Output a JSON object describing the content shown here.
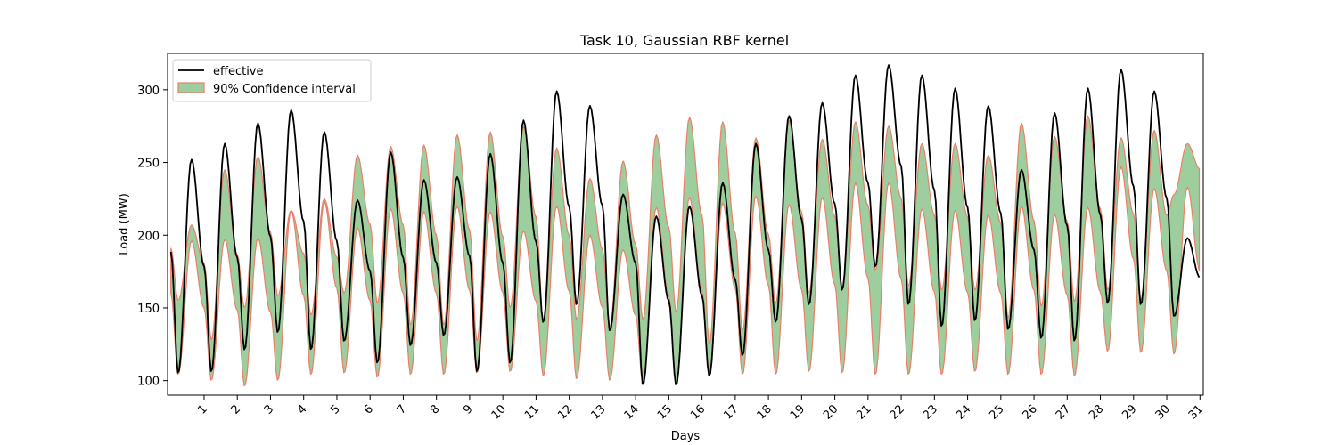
{
  "chart_data": {
    "type": "line",
    "title": "Task 10, Gaussian RBF kernel",
    "xlabel": "Days",
    "ylabel": "Load (MW)",
    "xlim": [
      -0.1,
      31.1
    ],
    "ylim": [
      90,
      325
    ],
    "x_tick_labels": [
      "1",
      "2",
      "3",
      "4",
      "5",
      "6",
      "7",
      "8",
      "9",
      "10",
      "11",
      "12",
      "13",
      "14",
      "15",
      "16",
      "17",
      "18",
      "19",
      "20",
      "21",
      "22",
      "23",
      "24",
      "25",
      "26",
      "27",
      "28",
      "29",
      "30",
      "31"
    ],
    "y_ticks": [
      100,
      150,
      200,
      250,
      300
    ],
    "grid": false,
    "legend_position": "top-left",
    "colors": {
      "effective_line": "#000000",
      "interval_fill": "#3d9e3d",
      "interval_edge": "#e8806a"
    },
    "series": [
      {
        "name": "effective",
        "kind": "line",
        "daily_min": [
          105,
          106,
          121,
          133,
          121,
          127,
          112,
          124,
          131,
          106,
          112,
          140,
          152,
          134,
          97,
          97,
          103,
          117,
          140,
          152,
          162,
          178,
          152,
          137,
          141,
          135,
          129,
          127,
          153,
          152,
          144
        ],
        "daily_max": [
          252,
          263,
          277,
          286,
          271,
          224,
          257,
          238,
          240,
          256,
          279,
          299,
          289,
          228,
          213,
          220,
          236,
          263,
          282,
          291,
          310,
          317,
          310,
          301,
          289,
          245,
          284,
          301,
          314,
          299,
          198
        ]
      },
      {
        "name": "90% Confidence interval",
        "kind": "band",
        "upper_max": [
          207,
          245,
          254,
          217,
          225,
          255,
          261,
          262,
          269,
          271,
          275,
          260,
          239,
          251,
          269,
          281,
          278,
          267,
          279,
          266,
          278,
          275,
          263,
          263,
          255,
          277,
          268,
          282,
          267,
          272,
          263
        ],
        "upper_min": [
          155,
          128,
          150,
          158,
          145,
          160,
          153,
          138,
          138,
          127,
          150,
          140,
          142,
          137,
          142,
          147,
          125,
          134,
          153,
          160,
          163,
          176,
          165,
          162,
          162,
          143,
          151,
          154,
          162,
          155,
          228
        ],
        "lower_max": [
          196,
          197,
          198,
          217,
          223,
          205,
          218,
          216,
          220,
          216,
          203,
          220,
          200,
          190,
          219,
          226,
          222,
          227,
          221,
          226,
          236,
          236,
          218,
          217,
          214,
          220,
          214,
          219,
          247,
          232,
          233
        ],
        "lower_min": [
          104,
          100,
          96,
          100,
          104,
          105,
          102,
          104,
          104,
          105,
          106,
          103,
          101,
          100,
          98,
          97,
          105,
          104,
          104,
          106,
          105,
          104,
          104,
          104,
          106,
          104,
          104,
          103,
          120,
          119,
          118
        ]
      }
    ]
  }
}
